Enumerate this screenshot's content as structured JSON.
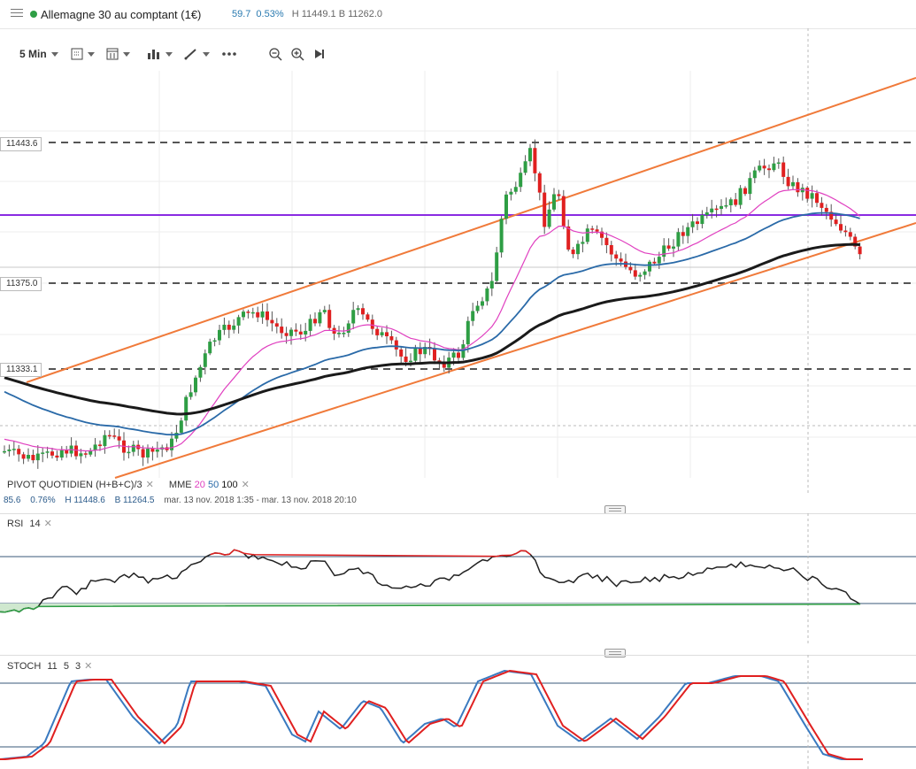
{
  "instrument": {
    "title": "Allemagne 30 au comptant (1€)",
    "change": "59.7",
    "change_pct": "0.53%",
    "high": "H 11449.1",
    "bid": "B 11262.0"
  },
  "toolbar": {
    "timeframe": "5 Min",
    "icons": [
      "chart-type-icon",
      "layout-icon",
      "indicators-icon",
      "drawing-icon",
      "more-icon",
      "zoom-out-icon",
      "zoom-in-icon",
      "scroll-to-end-icon"
    ]
  },
  "levels": {
    "upper": "11443.6",
    "middle": "11375.0",
    "lower": "11333.1"
  },
  "overlays": {
    "pivot_name": "PIVOT",
    "pivot_params": "QUOTIDIEN",
    "pivot_formula": "(H+B+C)/3",
    "mme_name": "MME",
    "mme_p1": "20",
    "mme_p2": "50",
    "mme_p3": "100"
  },
  "session": {
    "change": "85.6",
    "change_pct": "0.76%",
    "high": "H 11448.6",
    "low": "B 11264.5",
    "period": "mar. 13 nov. 2018 1:35 - mar. 13 nov. 2018 20:10"
  },
  "rsi": {
    "name": "RSI",
    "period": "14"
  },
  "stoch": {
    "name": "STOCH",
    "k": "11",
    "d": "5",
    "smooth": "3"
  },
  "colors": {
    "up": "#2e9e44",
    "down": "#e02020",
    "mme20": "#e040c0",
    "mme50": "#2a6aa8",
    "mme100": "#1a1a1a",
    "pivot": "#8a2be2",
    "channel": "#f07a3a",
    "stoch_k": "#3a7ac0",
    "stoch_d": "#e02020"
  }
}
